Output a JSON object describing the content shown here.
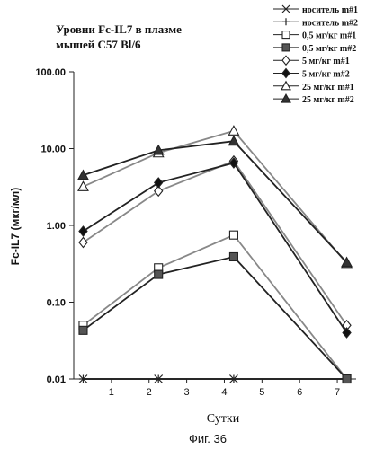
{
  "chart_data": {
    "type": "line",
    "title_lines": [
      "Уровни Fc-IL7 в плазме",
      "мышей C57 Bl/6"
    ],
    "xlabel": "Сутки",
    "ylabel": "Fc-IL7  (мкг/мл)",
    "figure_caption": "Фиг. 36",
    "yscale": "log",
    "ylim": [
      0.01,
      100
    ],
    "xlim": [
      0,
      7.5
    ],
    "y_ticks": [
      "100.00",
      "10.00",
      "1.00",
      "0.10",
      "0.01"
    ],
    "y_tick_values": [
      100,
      10,
      1,
      0.1,
      0.01
    ],
    "x_ticks": [
      "1",
      "2",
      "3",
      "4",
      "5",
      "6",
      "7"
    ],
    "grid": false,
    "legend_position": "top-right",
    "series": [
      {
        "name": "носитель m#1",
        "marker": "x",
        "x": [
          0.25,
          2.25,
          4.25,
          7.25
        ],
        "values": [
          0.01,
          0.01,
          0.01,
          0.01
        ]
      },
      {
        "name": "носитель m#2",
        "marker": "plus",
        "x": [
          0.25,
          2.25,
          4.25,
          7.25
        ],
        "values": [
          0.01,
          0.01,
          0.01,
          0.01
        ]
      },
      {
        "name": "0,5 мг/кг m#1",
        "marker": "square-open",
        "x": [
          0.25,
          2.25,
          4.25,
          7.25
        ],
        "values": [
          0.05,
          0.28,
          0.75,
          0.01
        ]
      },
      {
        "name": "0,5 мг/кг m#2",
        "marker": "square-filled",
        "x": [
          0.25,
          2.25,
          4.25,
          7.25
        ],
        "values": [
          0.043,
          0.23,
          0.39,
          0.01
        ]
      },
      {
        "name": "5 мг/кг m#1",
        "marker": "diamond-open",
        "x": [
          0.25,
          2.25,
          4.25,
          7.25
        ],
        "values": [
          0.6,
          2.8,
          6.9,
          0.05
        ]
      },
      {
        "name": "5 мг/кг m#2",
        "marker": "diamond-filled",
        "x": [
          0.25,
          2.25,
          4.25,
          7.25
        ],
        "values": [
          0.84,
          3.6,
          6.5,
          0.04
        ]
      },
      {
        "name": "25 мг/кг m#1",
        "marker": "triangle-open",
        "x": [
          0.25,
          2.25,
          4.25,
          7.25
        ],
        "values": [
          3.2,
          8.8,
          17,
          0.32
        ]
      },
      {
        "name": "25 мг/кг m#2",
        "marker": "triangle-filled",
        "x": [
          0.25,
          2.25,
          4.25,
          7.25
        ],
        "values": [
          4.5,
          9.5,
          12.5,
          0.33
        ]
      }
    ]
  }
}
